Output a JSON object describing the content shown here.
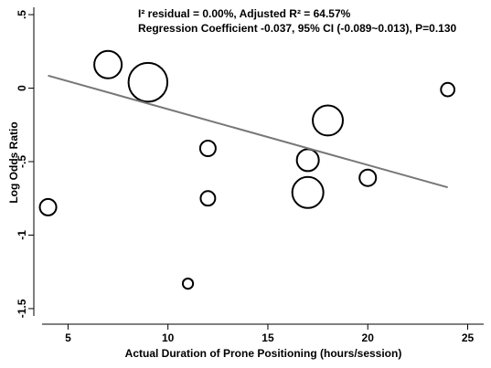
{
  "chart_data": {
    "type": "scatter",
    "xlabel": "Actual Duration of Prone Positioning (hours/session)",
    "ylabel": "Log Odds Ratio",
    "xlim": [
      3.7,
      25.8
    ],
    "ylim": [
      -1.55,
      0.55
    ],
    "x_ticks": [
      5,
      10,
      15,
      20,
      25
    ],
    "y_ticks": [
      0.5,
      0,
      -0.5,
      -1,
      -1.5
    ],
    "y_tick_labels": [
      ".5",
      "0",
      "-.5",
      "-1",
      "-1.5"
    ],
    "grid": false,
    "annotations": [
      "I² residual  =   0.00%, Adjusted R²  =  64.57%",
      "Regression Coefficient -0.037, 95% CI (-0.089~0.013), P=0.130"
    ],
    "regression_line": {
      "x": [
        4,
        24
      ],
      "y": [
        0.085,
        -0.675
      ]
    },
    "points": [
      {
        "x": 4,
        "y": -0.81,
        "weight": 0.9
      },
      {
        "x": 7,
        "y": 0.16,
        "weight": 2.5
      },
      {
        "x": 9,
        "y": 0.04,
        "weight": 5.0
      },
      {
        "x": 11,
        "y": -1.33,
        "weight": 0.35
      },
      {
        "x": 12,
        "y": -0.41,
        "weight": 0.8
      },
      {
        "x": 12,
        "y": -0.75,
        "weight": 0.7
      },
      {
        "x": 17,
        "y": -0.71,
        "weight": 3.2
      },
      {
        "x": 17,
        "y": -0.49,
        "weight": 1.6
      },
      {
        "x": 18,
        "y": -0.22,
        "weight": 3.0
      },
      {
        "x": 20,
        "y": -0.61,
        "weight": 0.9
      },
      {
        "x": 24,
        "y": -0.01,
        "weight": 0.6
      }
    ]
  }
}
